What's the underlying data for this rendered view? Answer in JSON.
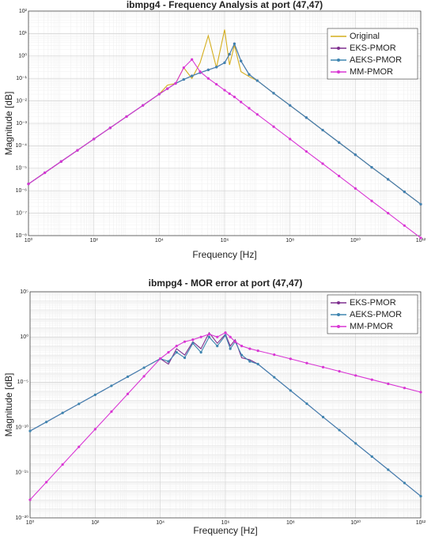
{
  "chart_data": [
    {
      "type": "line",
      "title": "ibmpg4 - Frequency Analysis at port (47,47)",
      "xlabel": "Frequency [Hz]",
      "ylabel": "Magnitude [dB]",
      "xscale": "log",
      "yscale": "log",
      "grid": true,
      "legend": "northeast",
      "xlim": [
        1,
        1000000000000.0
      ],
      "ylim": [
        1e-08,
        100
      ],
      "xticks": [
        {
          "value": 1,
          "label": "10⁰"
        },
        {
          "value": 100,
          "label": "10²"
        },
        {
          "value": 10000,
          "label": "10⁴"
        },
        {
          "value": 1000000,
          "label": "10⁶"
        },
        {
          "value": 100000000.0,
          "label": "10⁸"
        },
        {
          "value": 10000000000.0,
          "label": "10¹⁰"
        },
        {
          "value": 1000000000000.0,
          "label": "10¹²"
        }
      ],
      "yticks": [
        {
          "value": 1e-08,
          "label": "10⁻⁸"
        },
        {
          "value": 1e-07,
          "label": "10⁻⁷"
        },
        {
          "value": 1e-06,
          "label": "10⁻⁶"
        },
        {
          "value": 1e-05,
          "label": "10⁻⁵"
        },
        {
          "value": 0.0001,
          "label": "10⁻⁴"
        },
        {
          "value": 0.001,
          "label": "10⁻³"
        },
        {
          "value": 0.01,
          "label": "10⁻²"
        },
        {
          "value": 0.1,
          "label": "10⁻¹"
        },
        {
          "value": 1,
          "label": "10⁰"
        },
        {
          "value": 10,
          "label": "10¹"
        },
        {
          "value": 100,
          "label": "10²"
        }
      ],
      "x": [
        1,
        3.162,
        10,
        31.62,
        100,
        316.2,
        1000,
        3162,
        10000,
        17780,
        31620,
        56230,
        100000,
        177800,
        316200,
        562300,
        1000000,
        1413000,
        1995000,
        3162000,
        5623000,
        10000000,
        31620000,
        100000000.0,
        316200000.0,
        1000000000.0,
        3162000000.0,
        10000000000.0,
        31620000000.0,
        100000000000.0,
        316200000000.0,
        1000000000000.0
      ],
      "series": [
        {
          "name": "Original",
          "color": "#d4ad1c",
          "values": [
            2e-06,
            6.3e-06,
            2e-05,
            6.3e-05,
            0.0002,
            0.00063,
            0.002,
            0.0063,
            0.02,
            0.05,
            0.06,
            0.3,
            0.1,
            0.5,
            8,
            0.3,
            15,
            0.4,
            3,
            0.2,
            0.12,
            0.08,
            0.022,
            0.0063,
            0.0018,
            0.0005,
            0.00014,
            4e-05,
            1.1e-05,
            3.2e-06,
            8.9e-07,
            2.5e-07
          ]
        },
        {
          "name": "EKS-PMOR",
          "color": "#7e2f8e",
          "values": [
            2e-06,
            6.3e-06,
            2e-05,
            6.3e-05,
            0.0002,
            0.00063,
            0.002,
            0.0063,
            0.02,
            0.035,
            0.06,
            0.09,
            0.13,
            0.18,
            0.24,
            0.32,
            0.5,
            1.2,
            3.5,
            0.6,
            0.15,
            0.08,
            0.022,
            0.0063,
            0.0018,
            0.0005,
            0.00014,
            4e-05,
            1.1e-05,
            3.2e-06,
            8.9e-07,
            2.5e-07
          ]
        },
        {
          "name": "AEKS-PMOR",
          "color": "#3f85b0",
          "values": [
            2e-06,
            6.3e-06,
            2e-05,
            6.3e-05,
            0.0002,
            0.00063,
            0.002,
            0.0063,
            0.02,
            0.035,
            0.06,
            0.09,
            0.13,
            0.18,
            0.24,
            0.32,
            0.5,
            1.2,
            3.5,
            0.6,
            0.15,
            0.08,
            0.022,
            0.0063,
            0.0018,
            0.0005,
            0.00014,
            4e-05,
            1.1e-05,
            3.2e-06,
            8.9e-07,
            2.5e-07
          ]
        },
        {
          "name": "MM-PMOR",
          "color": "#d936d4",
          "values": [
            2e-06,
            6.3e-06,
            2e-05,
            6.3e-05,
            0.0002,
            0.00063,
            0.002,
            0.0063,
            0.02,
            0.035,
            0.06,
            0.3,
            0.7,
            0.2,
            0.1,
            0.055,
            0.03,
            0.021,
            0.015,
            0.0089,
            0.0047,
            0.0025,
            0.00071,
            0.0002,
            5.6e-05,
            1.6e-05,
            4.5e-06,
            1.26e-06,
            3.5e-07,
            1e-07,
            2.8e-08,
            7.9e-09
          ]
        }
      ]
    },
    {
      "type": "line",
      "title": "ibmpg4 - MOR error at port (47,47)",
      "xlabel": "Frequency [Hz]",
      "ylabel": "Magnitude [dB]",
      "xscale": "log",
      "yscale": "log",
      "grid": true,
      "legend": "northeast",
      "xlim": [
        1,
        1000000000000.0
      ],
      "ylim": [
        1e-20,
        100000
      ],
      "xticks": [
        {
          "value": 1,
          "label": "10⁰"
        },
        {
          "value": 100,
          "label": "10²"
        },
        {
          "value": 10000,
          "label": "10⁴"
        },
        {
          "value": 1000000,
          "label": "10⁶"
        },
        {
          "value": 100000000.0,
          "label": "10⁸"
        },
        {
          "value": 10000000000.0,
          "label": "10¹⁰"
        },
        {
          "value": 1000000000000.0,
          "label": "10¹²"
        }
      ],
      "yticks": [
        {
          "value": 1e-20,
          "label": "10⁻²⁰"
        },
        {
          "value": 1e-15,
          "label": "10⁻¹⁵"
        },
        {
          "value": 1e-10,
          "label": "10⁻¹⁰"
        },
        {
          "value": 1e-05,
          "label": "10⁻⁵"
        },
        {
          "value": 1,
          "label": "10⁰"
        },
        {
          "value": 100000,
          "label": "10⁵"
        }
      ],
      "x": [
        1,
        3.162,
        10,
        31.62,
        100,
        316.2,
        1000,
        3162,
        10000,
        17780,
        31620,
        56230,
        100000,
        177800,
        316200,
        562300,
        1000000,
        1413000,
        1995000,
        3162000,
        5623000,
        10000000,
        31620000,
        100000000.0,
        316200000.0,
        1000000000.0,
        3162000000.0,
        10000000000.0,
        31620000000.0,
        100000000000.0,
        316200000000.0,
        1000000000000.0
      ],
      "series": [
        {
          "name": "EKS-PMOR",
          "color": "#7e2f8e",
          "values": [
            4e-11,
            4e-10,
            4e-09,
            4e-08,
            4e-07,
            4e-06,
            4e-05,
            0.0004,
            0.004,
            0.001,
            0.05,
            0.01,
            0.3,
            0.05,
            3,
            0.2,
            2,
            0.1,
            0.5,
            0.005,
            0.003,
            0.001,
            3.5e-05,
            1.2e-06,
            4.2e-08,
            1.4e-09,
            5e-11,
            1.7e-12,
            6e-14,
            2.1e-15,
            7.2e-17,
            2.5e-18
          ]
        },
        {
          "name": "AEKS-PMOR",
          "color": "#3f85b0",
          "values": [
            4e-11,
            4e-10,
            4e-09,
            4e-08,
            4e-07,
            4e-06,
            4e-05,
            0.0004,
            0.004,
            0.002,
            0.02,
            0.005,
            0.2,
            0.02,
            1,
            0.1,
            1.5,
            0.05,
            0.3,
            0.01,
            0.002,
            0.001,
            3.5e-05,
            1.2e-06,
            4.2e-08,
            1.4e-09,
            5e-11,
            1.7e-12,
            6e-14,
            2.1e-15,
            7.2e-17,
            2.5e-18
          ]
        },
        {
          "name": "MM-PMOR",
          "color": "#d936d4",
          "values": [
            1e-18,
            8.9e-17,
            7.9e-15,
            7.1e-13,
            6.3e-11,
            5.6e-09,
            5e-07,
            4.5e-05,
            0.004,
            0.02,
            0.1,
            0.3,
            0.5,
            1,
            2,
            1,
            3,
            1,
            0.3,
            0.1,
            0.05,
            0.03,
            0.011,
            0.0038,
            0.0013,
            0.00046,
            0.00016,
            5.5e-05,
            1.9e-05,
            6.6e-06,
            2.3e-06,
            7.9e-07
          ]
        }
      ]
    }
  ]
}
